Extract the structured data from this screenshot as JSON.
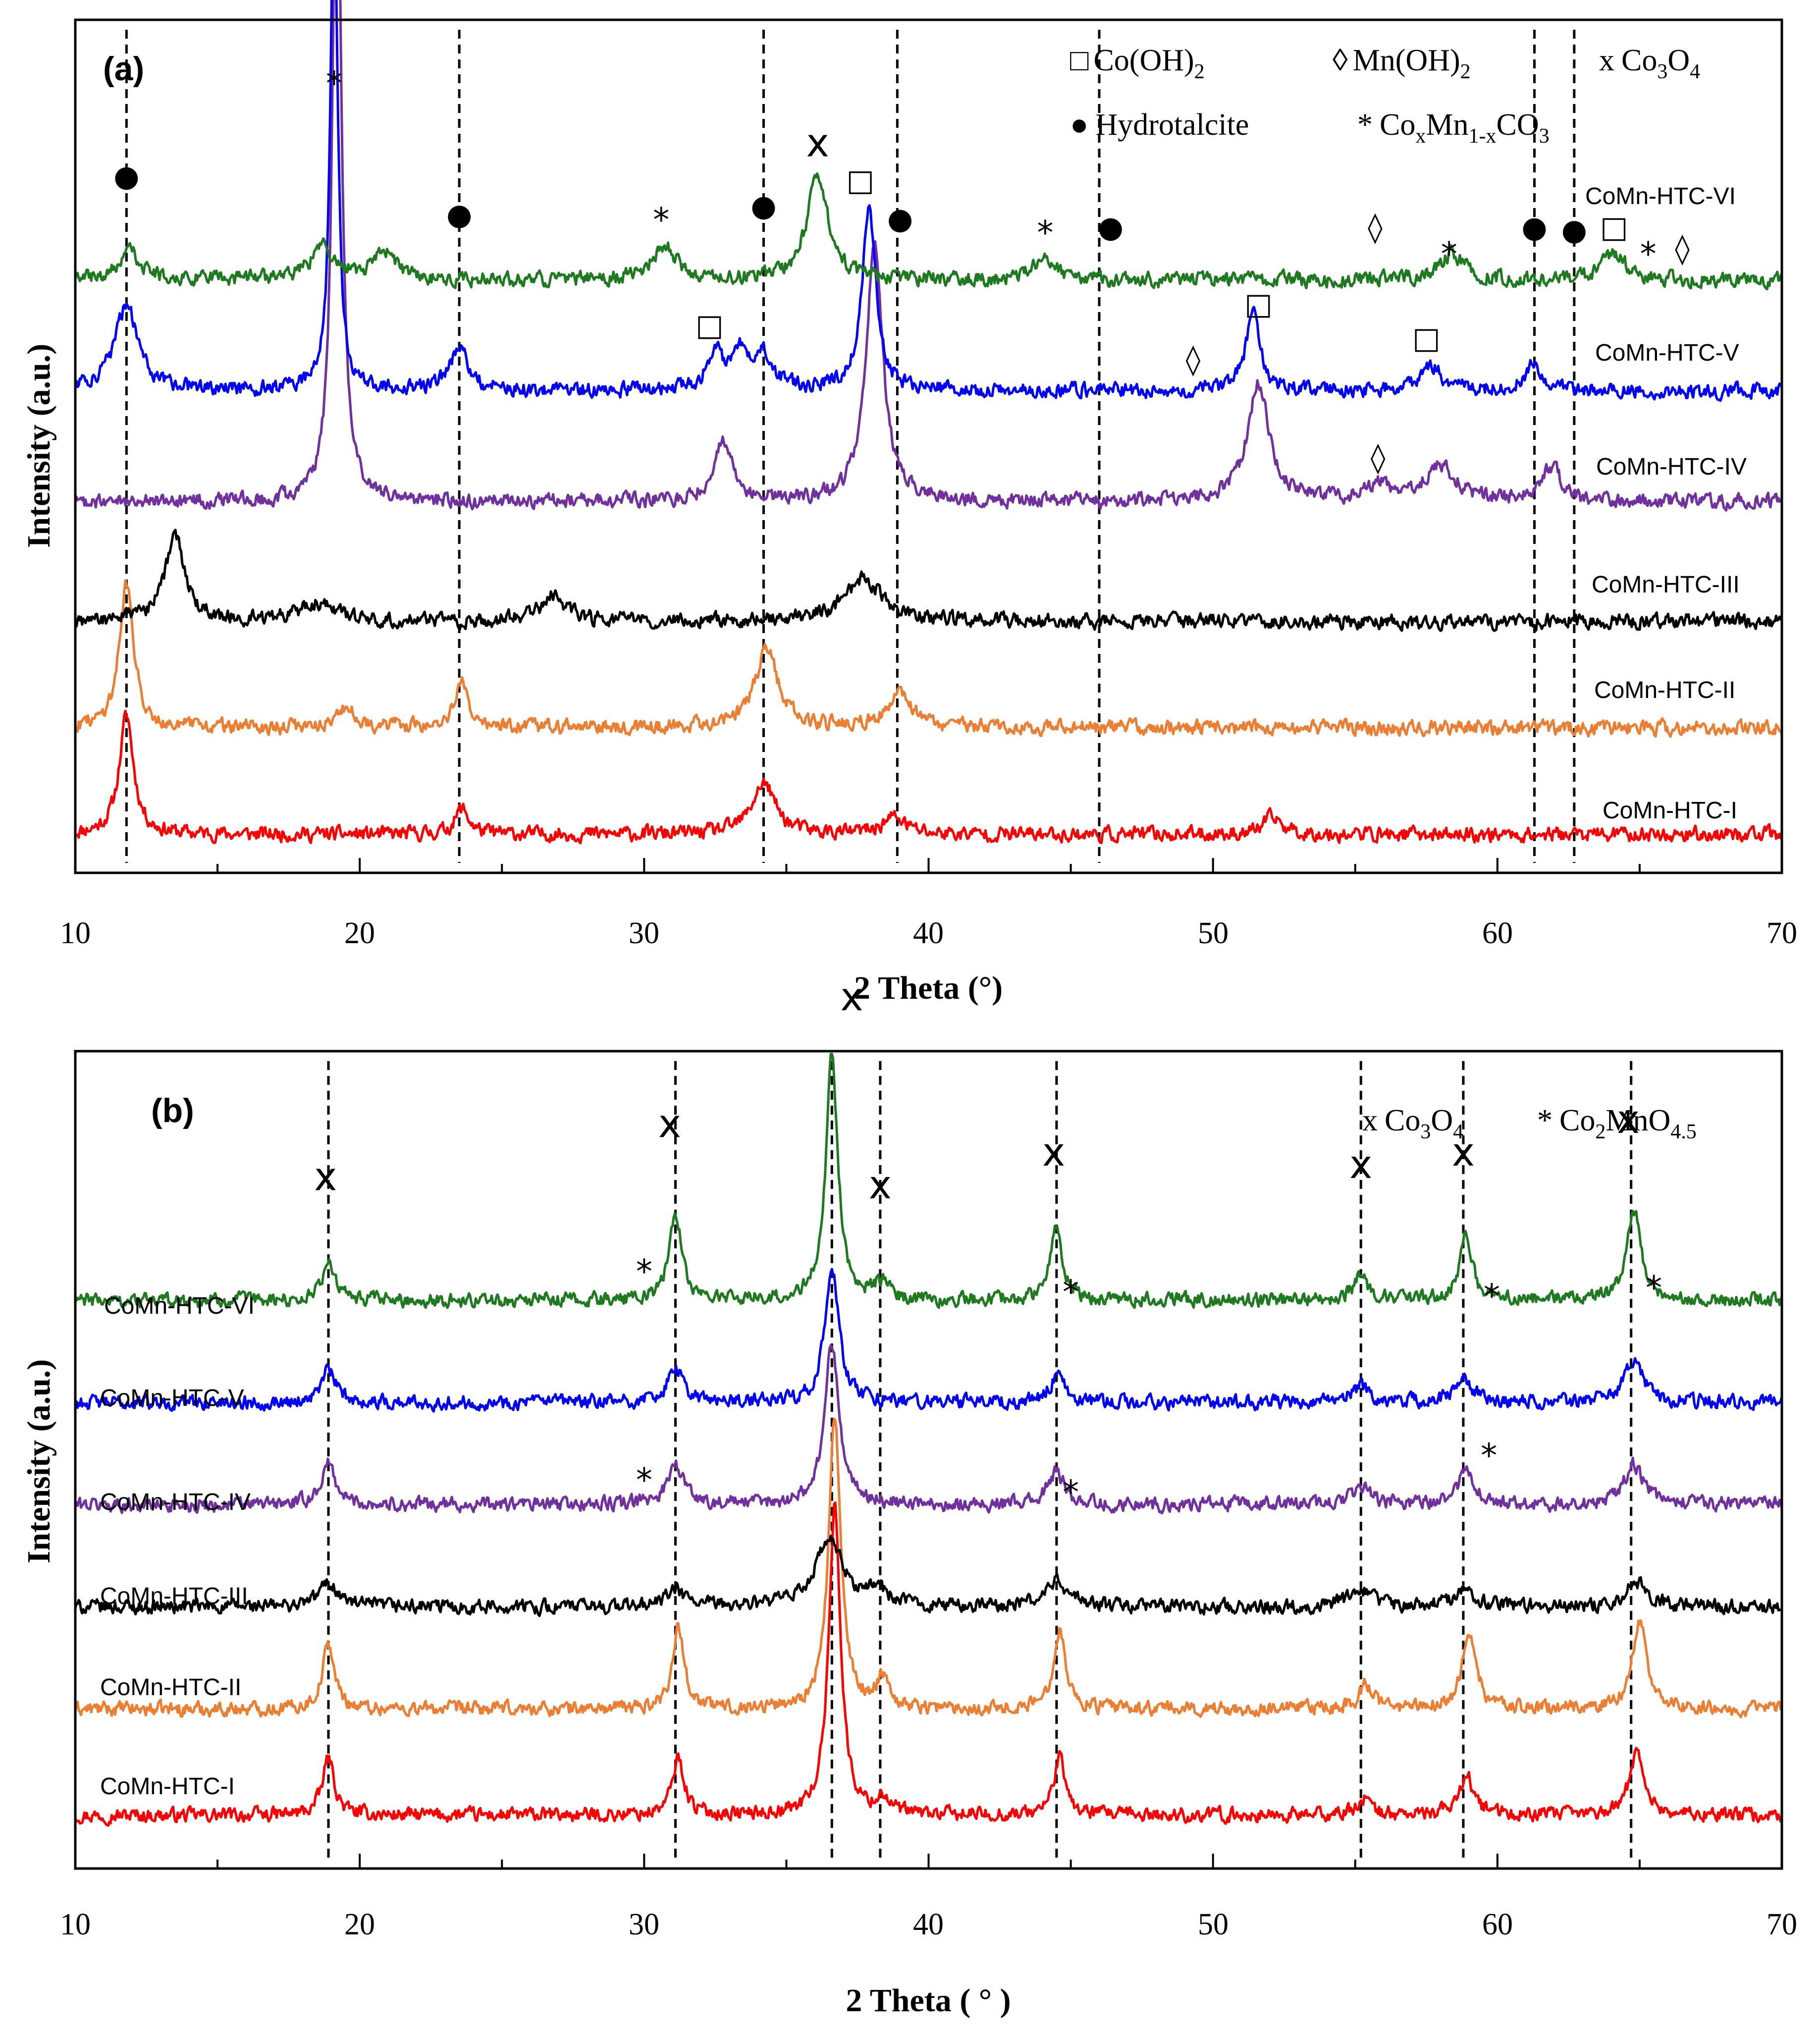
{
  "chart_data": [
    {
      "id": "a",
      "type": "line",
      "panel_label": "(a)",
      "xlabel": "2 Theta (°)",
      "ylabel": "Intensity (a.u.)",
      "xlim": [
        10,
        70
      ],
      "x_ticks": [
        "10",
        "20",
        "30",
        "40",
        "50",
        "60",
        "70"
      ],
      "x_tick_values": [
        10,
        20,
        30,
        40,
        50,
        60,
        70
      ],
      "legend": [
        {
          "symbol": "□",
          "name": "Co(OH)",
          "sub": "2",
          "name2": "",
          "sub2": ""
        },
        {
          "symbol": "◊",
          "name": "Mn(OH)",
          "sub": "2",
          "name2": "",
          "sub2": ""
        },
        {
          "symbol": "x",
          "name": "Co",
          "sub": "3",
          "name2": "O",
          "sub2": "4"
        },
        {
          "symbol": "●",
          "name": "Hydrotalcite",
          "sub": "",
          "name2": "",
          "sub2": ""
        },
        {
          "symbol": "*",
          "name": "Co",
          "sub": "x",
          "name2": "Mn",
          "sub2": "1-x",
          "name3": "CO",
          "sub3": "3"
        }
      ],
      "reference_lines": [
        11.8,
        23.5,
        34.2,
        38.9,
        46.0,
        61.3,
        62.7
      ],
      "series": [
        {
          "name": "CoMn-HTC-I",
          "color": "#ff0000",
          "base": 0.045,
          "noise": 0.011,
          "peaks": [
            [
              11.8,
              0.14,
              0.3
            ],
            [
              23.6,
              0.03,
              0.3
            ],
            [
              34.2,
              0.06,
              0.5
            ],
            [
              38.8,
              0.02,
              0.5
            ],
            [
              52.1,
              0.02,
              0.4
            ]
          ]
        },
        {
          "name": "CoMn-HTC-II",
          "color": "#ed7d31",
          "base": 0.17,
          "noise": 0.011,
          "peaks": [
            [
              11.8,
              0.17,
              0.3
            ],
            [
              19.5,
              0.02,
              0.5
            ],
            [
              23.6,
              0.05,
              0.3
            ],
            [
              34.3,
              0.09,
              0.5
            ],
            [
              39.0,
              0.04,
              0.5
            ]
          ]
        },
        {
          "name": "CoMn-HTC-III",
          "color": "#000000",
          "base": 0.295,
          "noise": 0.011,
          "peaks": [
            [
              13.5,
              0.1,
              0.4
            ],
            [
              18.5,
              0.02,
              0.8
            ],
            [
              26.8,
              0.03,
              0.5
            ],
            [
              37.7,
              0.05,
              0.8
            ]
          ]
        },
        {
          "name": "CoMn-HTC-IV",
          "color": "#7030a0",
          "base": 0.435,
          "noise": 0.011,
          "peaks": [
            [
              19.2,
              0.85,
              0.18
            ],
            [
              32.8,
              0.07,
              0.4
            ],
            [
              38.1,
              0.3,
              0.35
            ],
            [
              51.6,
              0.14,
              0.45
            ],
            [
              55.8,
              0.02,
              0.5
            ],
            [
              58.0,
              0.04,
              0.7
            ],
            [
              61.9,
              0.04,
              0.4
            ]
          ]
        },
        {
          "name": "CoMn-HTC-V",
          "color": "#0000ff",
          "base": 0.565,
          "noise": 0.011,
          "peaks": [
            [
              11.8,
              0.1,
              0.5
            ],
            [
              19.1,
              0.6,
              0.15
            ],
            [
              23.5,
              0.05,
              0.4
            ],
            [
              32.5,
              0.05,
              0.3
            ],
            [
              33.4,
              0.04,
              0.3
            ],
            [
              34.2,
              0.04,
              0.4
            ],
            [
              37.9,
              0.21,
              0.3
            ],
            [
              51.4,
              0.09,
              0.3
            ],
            [
              57.7,
              0.03,
              0.4
            ],
            [
              61.3,
              0.03,
              0.4
            ]
          ]
        },
        {
          "name": "CoMn-HTC-VI",
          "color": "#1e7a1e",
          "base": 0.695,
          "noise": 0.011,
          "peaks": [
            [
              11.9,
              0.04,
              0.4
            ],
            [
              18.7,
              0.04,
              0.5
            ],
            [
              20.9,
              0.03,
              0.5
            ],
            [
              30.7,
              0.04,
              0.5
            ],
            [
              36.1,
              0.12,
              0.45
            ],
            [
              44.1,
              0.03,
              0.4
            ],
            [
              58.4,
              0.03,
              0.5
            ],
            [
              64.1,
              0.03,
              0.5
            ]
          ]
        }
      ],
      "annotations": [
        {
          "x": 11.8,
          "y": 0.805,
          "text": "●"
        },
        {
          "x": 19.1,
          "y": 0.925,
          "text": "*"
        },
        {
          "x": 23.5,
          "y": 0.76,
          "text": "●"
        },
        {
          "x": 30.6,
          "y": 0.765,
          "text": "*"
        },
        {
          "x": 34.2,
          "y": 0.77,
          "text": "●"
        },
        {
          "x": 36.1,
          "y": 0.84,
          "text": "x"
        },
        {
          "x": 37.6,
          "y": 0.8,
          "text": "□"
        },
        {
          "x": 39.0,
          "y": 0.755,
          "text": "●"
        },
        {
          "x": 44.1,
          "y": 0.75,
          "text": "*"
        },
        {
          "x": 46.4,
          "y": 0.745,
          "text": "●"
        },
        {
          "x": 55.7,
          "y": 0.745,
          "text": "◊"
        },
        {
          "x": 58.3,
          "y": 0.725,
          "text": "*"
        },
        {
          "x": 61.3,
          "y": 0.745,
          "text": "●"
        },
        {
          "x": 62.7,
          "y": 0.742,
          "text": "●"
        },
        {
          "x": 64.1,
          "y": 0.745,
          "text": "□"
        },
        {
          "x": 65.3,
          "y": 0.725,
          "text": "*"
        },
        {
          "x": 66.5,
          "y": 0.72,
          "text": "◊"
        },
        {
          "x": 32.3,
          "y": 0.63,
          "text": "□"
        },
        {
          "x": 49.3,
          "y": 0.59,
          "text": "◊"
        },
        {
          "x": 51.6,
          "y": 0.655,
          "text": "□"
        },
        {
          "x": 57.5,
          "y": 0.615,
          "text": "□"
        },
        {
          "x": 55.8,
          "y": 0.475,
          "text": "◊"
        }
      ],
      "label_order_top_to_bottom": [
        "CoMn-HTC-VI",
        "CoMn-HTC-V",
        "CoMn-HTC-IV",
        "CoMn-HTC-III",
        "CoMn-HTC-II",
        "CoMn-HTC-I"
      ]
    },
    {
      "id": "b",
      "type": "line",
      "panel_label": "(b)",
      "xlabel": "2 Theta ( ° )",
      "ylabel": "Intensity (a.u.)",
      "xlim": [
        10,
        70
      ],
      "x_ticks": [
        "10",
        "20",
        "30",
        "40",
        "50",
        "60",
        "70"
      ],
      "x_tick_values": [
        10,
        20,
        30,
        40,
        50,
        60,
        70
      ],
      "legend": [
        {
          "symbol": "x",
          "name": "Co",
          "sub": "3",
          "name2": "O",
          "sub2": "4"
        },
        {
          "symbol": "*",
          "name": "Co",
          "sub": "2",
          "name2": "MnO",
          "sub2": "4.5"
        }
      ],
      "reference_lines": [
        18.9,
        31.1,
        36.6,
        38.3,
        44.5,
        55.2,
        58.8,
        64.7
      ],
      "series": [
        {
          "name": "CoMn-HTC-I",
          "color": "#ff0000",
          "base": 0.065,
          "noise": 0.011,
          "peaks": [
            [
              18.9,
              0.07,
              0.25
            ],
            [
              31.2,
              0.07,
              0.25
            ],
            [
              36.7,
              0.38,
              0.25
            ],
            [
              38.4,
              0.02,
              0.25
            ],
            [
              44.6,
              0.07,
              0.25
            ],
            [
              55.3,
              0.02,
              0.3
            ],
            [
              58.9,
              0.05,
              0.3
            ],
            [
              64.9,
              0.08,
              0.3
            ]
          ]
        },
        {
          "name": "CoMn-HTC-II",
          "color": "#ed7d31",
          "base": 0.195,
          "noise": 0.011,
          "peaks": [
            [
              18.9,
              0.08,
              0.25
            ],
            [
              31.2,
              0.1,
              0.25
            ],
            [
              36.7,
              0.36,
              0.25
            ],
            [
              38.4,
              0.04,
              0.25
            ],
            [
              44.6,
              0.1,
              0.25
            ],
            [
              55.4,
              0.03,
              0.3
            ],
            [
              59.0,
              0.09,
              0.3
            ],
            [
              65.0,
              0.11,
              0.3
            ]
          ]
        },
        {
          "name": "CoMn-HTC-III",
          "color": "#000000",
          "base": 0.32,
          "noise": 0.011,
          "peaks": [
            [
              18.9,
              0.03,
              0.4
            ],
            [
              31.1,
              0.02,
              0.4
            ],
            [
              36.5,
              0.08,
              0.6
            ],
            [
              38.2,
              0.02,
              0.4
            ],
            [
              44.5,
              0.03,
              0.5
            ],
            [
              55.2,
              0.02,
              0.5
            ],
            [
              58.8,
              0.02,
              0.5
            ],
            [
              64.9,
              0.03,
              0.5
            ]
          ]
        },
        {
          "name": "CoMn-HTC-IV",
          "color": "#7030a0",
          "base": 0.445,
          "noise": 0.011,
          "peaks": [
            [
              18.9,
              0.05,
              0.3
            ],
            [
              31.1,
              0.05,
              0.35
            ],
            [
              36.6,
              0.2,
              0.3
            ],
            [
              44.5,
              0.04,
              0.35
            ],
            [
              55.2,
              0.02,
              0.4
            ],
            [
              58.9,
              0.04,
              0.35
            ],
            [
              64.8,
              0.05,
              0.4
            ]
          ]
        },
        {
          "name": "CoMn-HTC-V",
          "color": "#0000ff",
          "base": 0.57,
          "noise": 0.011,
          "peaks": [
            [
              18.9,
              0.04,
              0.3
            ],
            [
              31.1,
              0.04,
              0.35
            ],
            [
              36.6,
              0.16,
              0.3
            ],
            [
              44.5,
              0.03,
              0.35
            ],
            [
              55.2,
              0.02,
              0.4
            ],
            [
              58.8,
              0.03,
              0.4
            ],
            [
              64.8,
              0.05,
              0.4
            ]
          ]
        },
        {
          "name": "CoMn-HTC-VI",
          "color": "#1e7a1e",
          "base": 0.695,
          "noise": 0.011,
          "peaks": [
            [
              18.9,
              0.05,
              0.25
            ],
            [
              31.1,
              0.11,
              0.25
            ],
            [
              36.6,
              0.3,
              0.25
            ],
            [
              38.3,
              0.02,
              0.3
            ],
            [
              44.5,
              0.09,
              0.25
            ],
            [
              55.2,
              0.03,
              0.3
            ],
            [
              58.9,
              0.08,
              0.25
            ],
            [
              64.8,
              0.11,
              0.3
            ]
          ]
        }
      ],
      "annotations": [
        {
          "x": 18.8,
          "y": 0.83,
          "text": "x"
        },
        {
          "x": 30.9,
          "y": 0.895,
          "text": "x"
        },
        {
          "x": 37.3,
          "y": 1.05,
          "text": "x"
        },
        {
          "x": 38.3,
          "y": 0.82,
          "text": "x"
        },
        {
          "x": 44.4,
          "y": 0.86,
          "text": "x"
        },
        {
          "x": 55.2,
          "y": 0.845,
          "text": "x"
        },
        {
          "x": 58.8,
          "y": 0.86,
          "text": "x"
        },
        {
          "x": 64.6,
          "y": 0.9,
          "text": "x"
        },
        {
          "x": 30.0,
          "y": 0.73,
          "text": "*"
        },
        {
          "x": 45.0,
          "y": 0.705,
          "text": "*"
        },
        {
          "x": 59.8,
          "y": 0.7,
          "text": "*"
        },
        {
          "x": 65.5,
          "y": 0.71,
          "text": "*"
        },
        {
          "x": 30.0,
          "y": 0.475,
          "text": "*"
        },
        {
          "x": 45.0,
          "y": 0.46,
          "text": "*"
        },
        {
          "x": 59.7,
          "y": 0.505,
          "text": "*"
        }
      ],
      "label_order_top_to_bottom": [
        "CoMn-HTC-VI",
        "CoMn-HTC-V",
        "CoMn-HTC-IV",
        "CoMn-HTC-III",
        "CoMn-HTC-II",
        "CoMn-HTC-I"
      ]
    }
  ]
}
